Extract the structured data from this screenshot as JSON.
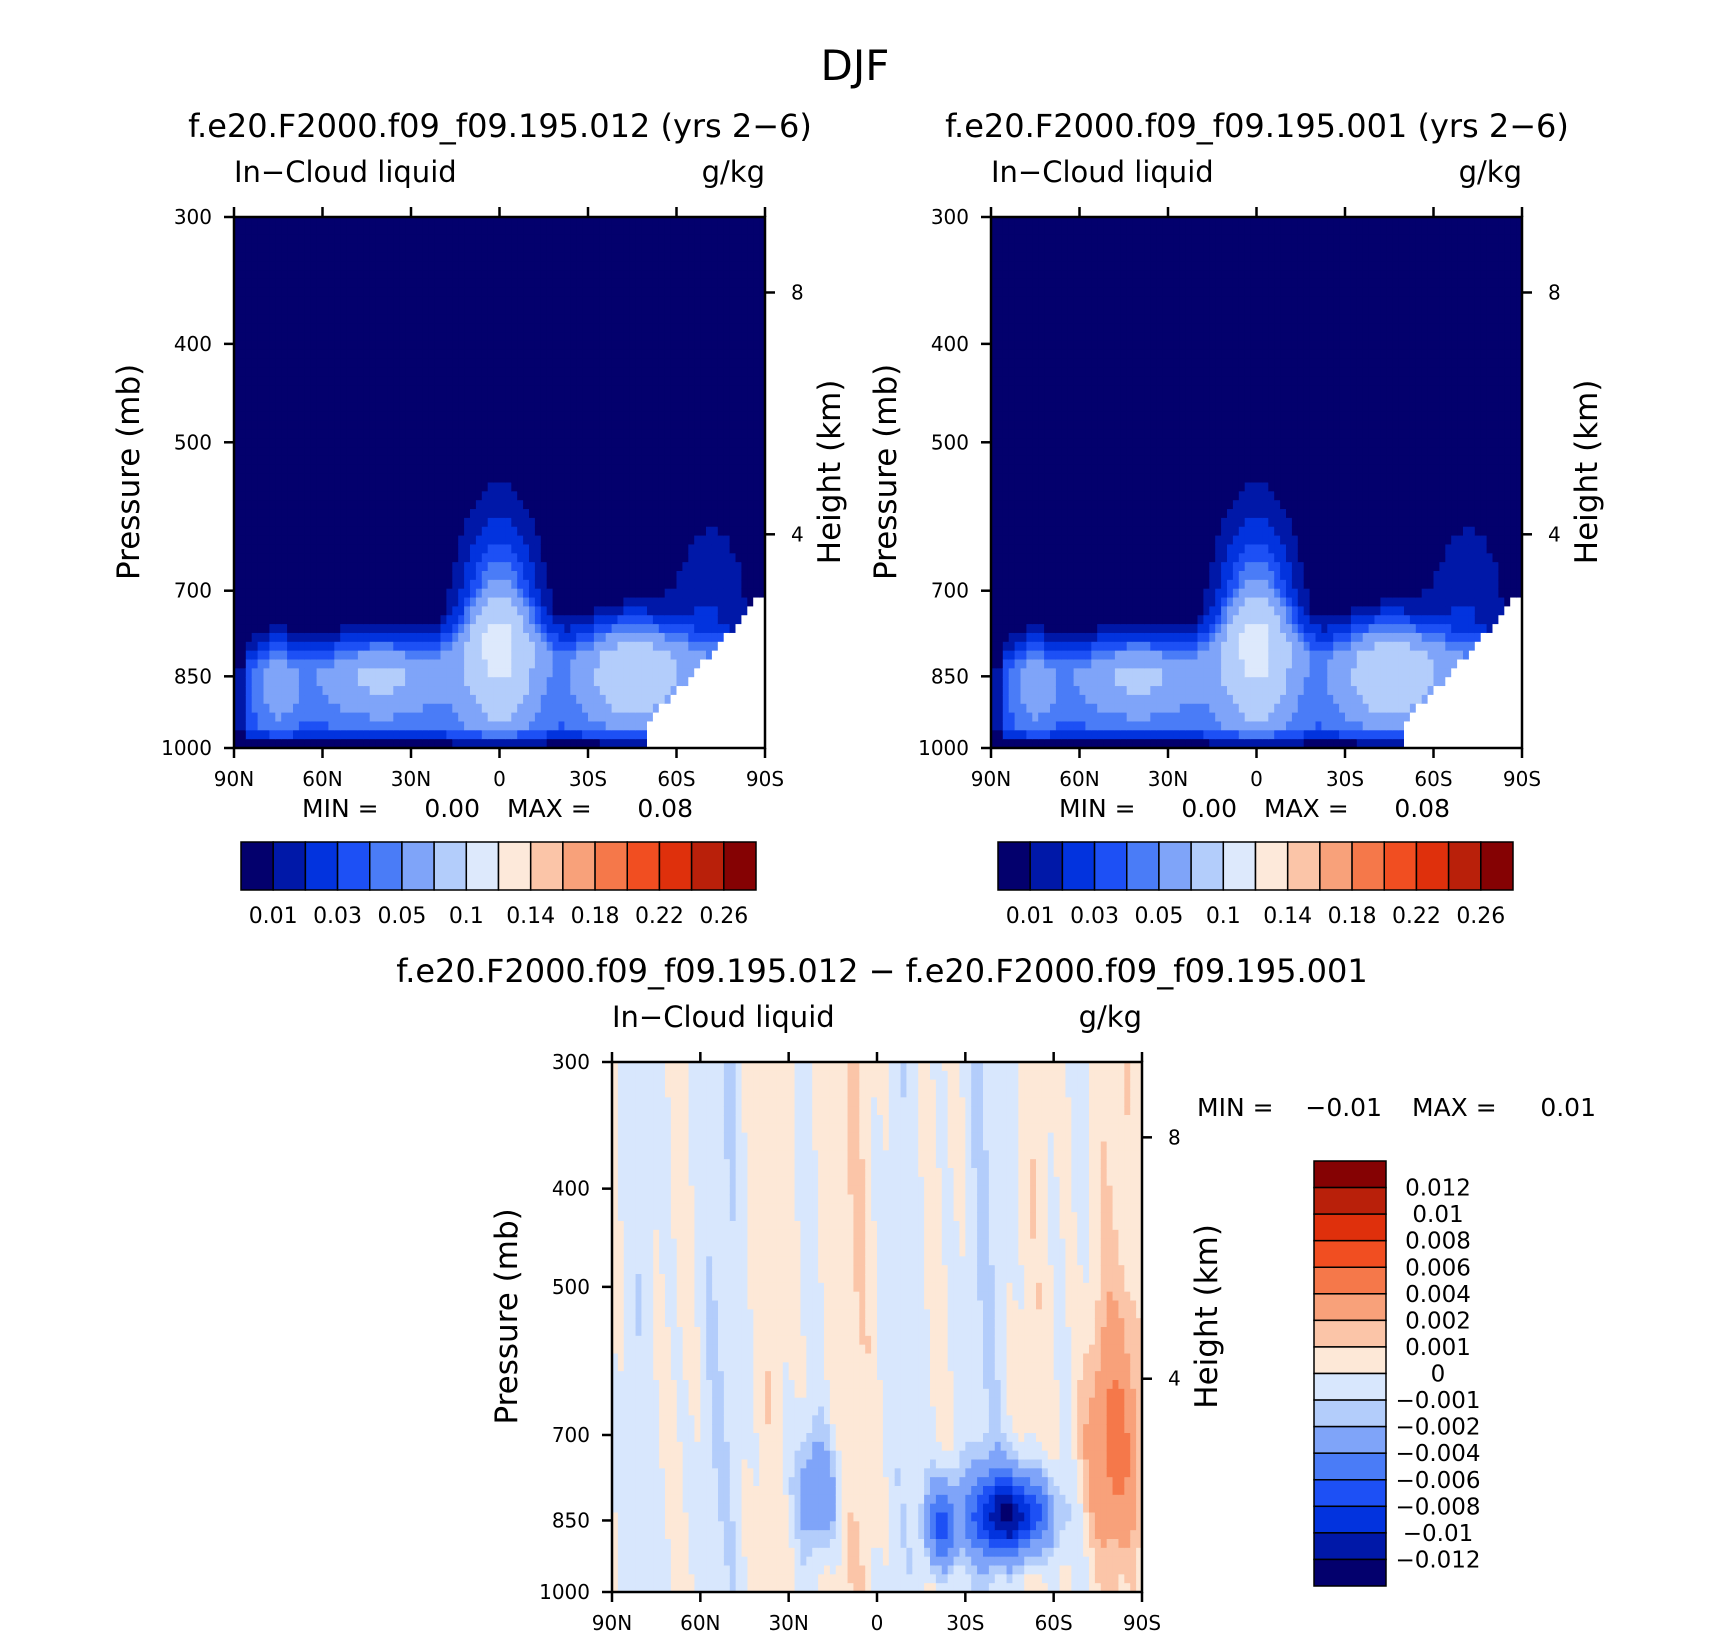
{
  "figure": {
    "title": "DJF"
  },
  "colors": {
    "abs_scale": [
      "#03006d",
      "#0018a8",
      "#0233de",
      "#1d50f5",
      "#4a7cf7",
      "#7fa4f9",
      "#b3cdfb",
      "#dde9fc",
      "#fde9da",
      "#fbc5a8",
      "#f8a17a",
      "#f5784a",
      "#f14e21",
      "#df300c",
      "#b9200a",
      "#850203"
    ],
    "diff_scale": [
      "#03006d",
      "#0018a8",
      "#0233de",
      "#1d50f5",
      "#4a7cf7",
      "#7fa4f9",
      "#b3cdfb",
      "#d8e7fd",
      "#fde8d7",
      "#fbc5a8",
      "#f8a17a",
      "#f5784a",
      "#f14e21",
      "#df300c",
      "#b9200a",
      "#850203"
    ]
  },
  "chart_data": [
    {
      "type": "heatmap",
      "title": "f.e20.F2000.f09_f09.195.012 (yrs 2−6)",
      "left_label": "In−Cloud liquid",
      "right_label": "g/kg",
      "ylabel": "Pressure (mb)",
      "y2label": "Height (km)",
      "yticks": [
        "300",
        "400",
        "500",
        "700",
        "850",
        "1000"
      ],
      "y2ticks": [
        "8",
        "4"
      ],
      "xticks": [
        "90N",
        "60N",
        "30N",
        "0",
        "30S",
        "60S",
        "90S"
      ],
      "xlim": [
        90,
        -90
      ],
      "ylim": [
        1000,
        300
      ],
      "min_label": "MIN =",
      "min_value": "0.00",
      "max_label": "MAX =",
      "max_value": "0.08",
      "colorbar_labels": [
        "0.01",
        "0.03",
        "0.05",
        "0.1",
        "0.14",
        "0.18",
        "0.22",
        "0.26"
      ],
      "colorbar_levels": [
        "0.01",
        "0.02",
        "0.03",
        "0.04",
        "0.05",
        "0.07",
        "0.1",
        "0.12",
        "0.14",
        "0.16",
        "0.18",
        "0.2",
        "0.22",
        "0.24",
        "0.26"
      ],
      "field": "In-cloud liquid water, zonal mean, latitude vs pressure; maxima near 850 mb at the equator and 45S"
    },
    {
      "type": "heatmap",
      "title": "f.e20.F2000.f09_f09.195.001 (yrs 2−6)",
      "left_label": "In−Cloud liquid",
      "right_label": "g/kg",
      "ylabel": "Pressure (mb)",
      "y2label": "Height (km)",
      "yticks": [
        "300",
        "400",
        "500",
        "700",
        "850",
        "1000"
      ],
      "y2ticks": [
        "8",
        "4"
      ],
      "xticks": [
        "90N",
        "60N",
        "30N",
        "0",
        "30S",
        "60S",
        "90S"
      ],
      "xlim": [
        90,
        -90
      ],
      "ylim": [
        1000,
        300
      ],
      "min_label": "MIN =",
      "min_value": "0.00",
      "max_label": "MAX =",
      "max_value": "0.08",
      "colorbar_labels": [
        "0.01",
        "0.03",
        "0.05",
        "0.1",
        "0.14",
        "0.18",
        "0.22",
        "0.26"
      ],
      "colorbar_levels": [
        "0.01",
        "0.02",
        "0.03",
        "0.04",
        "0.05",
        "0.07",
        "0.1",
        "0.12",
        "0.14",
        "0.16",
        "0.18",
        "0.2",
        "0.22",
        "0.24",
        "0.26"
      ],
      "field": "In-cloud liquid water, zonal mean, latitude vs pressure"
    },
    {
      "type": "heatmap",
      "title": "f.e20.F2000.f09_f09.195.012 − f.e20.F2000.f09_f09.195.001",
      "left_label": "In−Cloud liquid",
      "right_label": "g/kg",
      "ylabel": "Pressure (mb)",
      "y2label": "Height (km)",
      "yticks": [
        "300",
        "400",
        "500",
        "700",
        "850",
        "1000"
      ],
      "y2ticks": [
        "8",
        "4"
      ],
      "xticks": [
        "90N",
        "60N",
        "30N",
        "0",
        "30S",
        "60S",
        "90S"
      ],
      "xlim": [
        90,
        -90
      ],
      "ylim": [
        1000,
        300
      ],
      "min_label": "MIN =",
      "min_value": "−0.01",
      "max_label": "MAX =",
      "max_value": "0.01",
      "colorbar_labels": [
        "0.012",
        "0.01",
        "0.008",
        "0.006",
        "0.004",
        "0.002",
        "0.001",
        "0",
        "−0.001",
        "−0.002",
        "−0.004",
        "−0.006",
        "−0.008",
        "−0.01",
        "−0.012"
      ],
      "field": "Difference field; negative minimum near 850 mb around 45S"
    }
  ]
}
